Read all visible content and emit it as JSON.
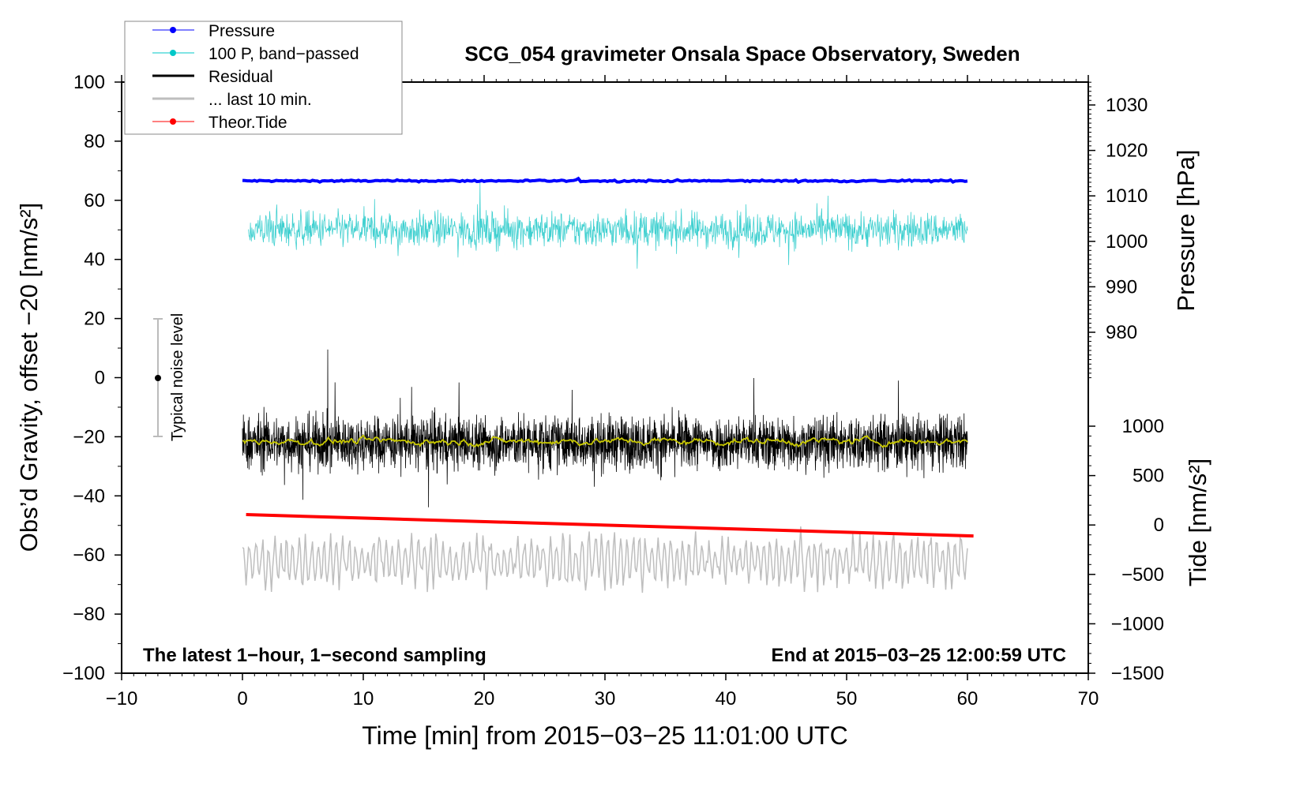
{
  "chart_data": {
    "type": "line",
    "title": "SCG_054 gravimeter Onsala Space Observatory, Sweden",
    "xlabel": "Time [min] from 2015−03−25 11:01:00 UTC",
    "ylabel_left": "Obs’d Gravity, offset −20 [nm/s²]",
    "ylabel_right_pressure": "Pressure [hPa]",
    "ylabel_right_tide": "Tide [nm/s²]",
    "xlim": [
      -10,
      70
    ],
    "ylim_left": [
      -100,
      100
    ],
    "x_ticks": [
      "−10",
      "0",
      "10",
      "20",
      "30",
      "40",
      "50",
      "60",
      "70"
    ],
    "x_tick_values": [
      -10,
      0,
      10,
      20,
      30,
      40,
      50,
      60,
      70
    ],
    "y_ticks_left": [
      "100",
      "80",
      "60",
      "40",
      "20",
      "0",
      "−20",
      "−40",
      "−60",
      "−80",
      "−100"
    ],
    "y_tick_values_left": [
      100,
      80,
      60,
      40,
      20,
      0,
      -20,
      -40,
      -60,
      -80,
      -100
    ],
    "pressure_ticks": [
      "1030",
      "1020",
      "1010",
      "1000",
      "990",
      "980"
    ],
    "pressure_tick_values": [
      1030,
      1020,
      1010,
      1000,
      990,
      980
    ],
    "tide_ticks": [
      "1000",
      "500",
      "0",
      "−500",
      "−1000",
      "−1500"
    ],
    "tide_tick_values": [
      1000,
      500,
      0,
      -500,
      -1000,
      -1500
    ],
    "legend": {
      "placement": "top-left",
      "entries": [
        {
          "label": "Pressure",
          "color": "#0000ff",
          "marker": true
        },
        {
          "label": "100 P, band−passed",
          "color": "#00c8c8",
          "marker": true
        },
        {
          "label": "Residual",
          "color": "#000000",
          "marker": false
        },
        {
          "label": "... last 10 min.",
          "color": "#bebebe",
          "marker": false
        },
        {
          "label": "Theor.Tide",
          "color": "#ff0000",
          "marker": true
        }
      ]
    },
    "series": [
      {
        "name": "Pressure",
        "axis": "pressure",
        "x_range": [
          0,
          60
        ],
        "mean": 1013.3,
        "noise": 0.1,
        "color": "#0000ff"
      },
      {
        "name": "100 P, band-passed",
        "axis": "left",
        "x_range": [
          0.5,
          60
        ],
        "mean": 50,
        "noise": 3,
        "color": "#40d0d0"
      },
      {
        "name": "Residual",
        "axis": "left",
        "x_range": [
          0,
          60
        ],
        "mean": -22,
        "noise": 4.5,
        "color": "#000000"
      },
      {
        "name": "Residual smoothed",
        "axis": "left",
        "x_range": [
          0,
          60
        ],
        "mean": -21.5,
        "noise": 0.4,
        "color": "#c8c800"
      },
      {
        "name": "... last 10 min.",
        "axis": "left",
        "x_range": [
          0,
          60
        ],
        "mean": -62,
        "noise": 5,
        "color": "#bebebe"
      },
      {
        "name": "Theor.Tide",
        "axis": "tide",
        "x": [
          0.3,
          60.5
        ],
        "y": [
          105,
          -111
        ],
        "color": "#ff0000"
      }
    ],
    "noise_bar": {
      "label": "Typical noise level",
      "center": 0,
      "range": [
        -20,
        20
      ]
    },
    "annotations": {
      "left": "The latest 1−hour, 1−second sampling",
      "right": "End at 2015−03−25 12:00:59 UTC"
    }
  }
}
